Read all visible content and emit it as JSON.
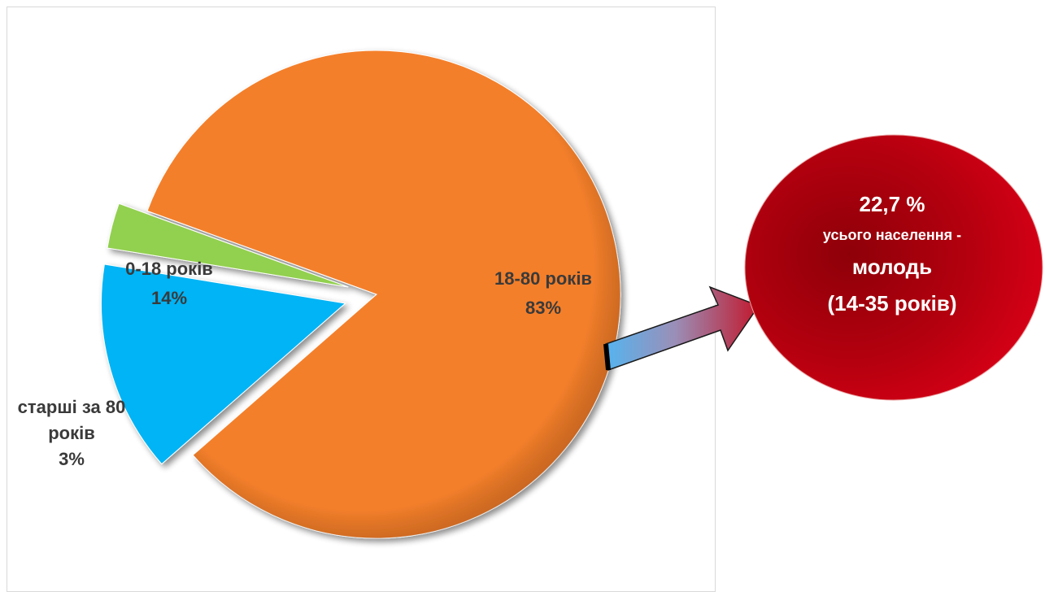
{
  "chart_data": {
    "type": "pie",
    "slices": [
      {
        "label_lines": [
          "18-80 років",
          "83%"
        ],
        "value": 83,
        "color": "#f47f2a",
        "exploded": false
      },
      {
        "label_lines": [
          "0-18 років",
          "14%"
        ],
        "value": 14,
        "color": "#00b4f5",
        "exploded": true
      },
      {
        "label_lines": [
          "старші за 80",
          "років",
          "3%"
        ],
        "value": 3,
        "color": "#92d050",
        "exploded": true
      }
    ]
  },
  "callout": {
    "line1": "22,7 %",
    "line2": "усього населення -",
    "line3": "молодь",
    "line4": "(14-35 років)",
    "color": "#b00010"
  }
}
